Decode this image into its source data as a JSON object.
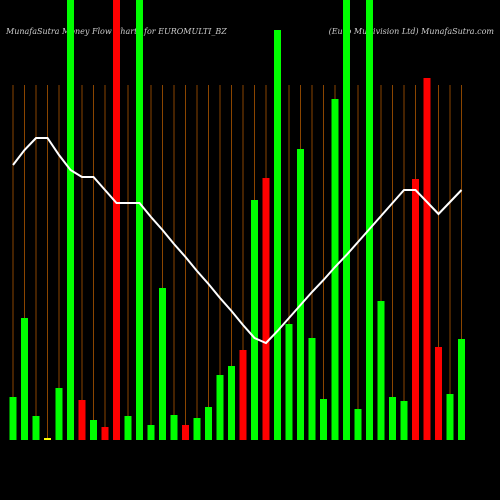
{
  "chart_data": {
    "type": "bar",
    "title": "MunafaSutra Money Flow Charts for EUROMULTI_BZ",
    "subtitle": "(Euro Multivision Ltd) MunafaSutra.com",
    "categories": [
      null,
      null,
      null,
      null,
      null,
      null,
      null,
      null,
      null,
      null,
      null,
      null,
      null,
      null,
      null,
      null,
      null,
      null,
      null,
      null,
      null,
      null,
      null,
      null,
      null,
      null,
      null,
      null,
      null,
      null,
      null,
      null,
      null,
      null,
      null,
      null,
      null,
      null,
      null,
      null
    ],
    "ylim": [
      0,
      440
    ],
    "bar_colors": [
      "#00ff00",
      "#00ff00",
      "#00ff00",
      "#ffff00",
      "#00ff00",
      "#00ff00",
      "#ff0000",
      "#00ff00",
      "#ff0000",
      "#ff0000",
      "#00ff00",
      "#00ff00",
      "#00ff00",
      "#00ff00",
      "#00ff00",
      "#ff0000",
      "#00ff00",
      "#00ff00",
      "#00ff00",
      "#00ff00",
      "#ff0000",
      "#00ff00",
      "#ff0000",
      "#00ff00",
      "#00ff00",
      "#00ff00",
      "#00ff00",
      "#00ff00",
      "#00ff00",
      "#00ff00",
      "#00ff00",
      "#00ff00",
      "#00ff00",
      "#00ff00",
      "#00ff00",
      "#ff0000",
      "#ff0000",
      "#ff0000",
      "#00ff00",
      "#00ff00"
    ],
    "series": [
      {
        "type": "bar",
        "values": [
          43,
          122,
          24,
          2,
          52,
          440,
          40,
          20,
          13,
          440,
          24,
          440,
          15,
          152,
          25,
          15,
          22,
          33,
          65,
          74,
          90,
          240,
          262,
          410,
          116,
          291,
          102,
          41,
          341,
          440,
          31,
          440,
          139,
          43,
          39,
          261,
          362,
          93,
          46,
          101
        ]
      },
      {
        "type": "line",
        "color": "#ffffff",
        "values": [
          275,
          290,
          302,
          302,
          285,
          270,
          263,
          263,
          250,
          237,
          237,
          237,
          223,
          210,
          196,
          183,
          169,
          156,
          142,
          129,
          115,
          102,
          97,
          109,
          122,
          135,
          148,
          160,
          173,
          185,
          198,
          211,
          224,
          237,
          250,
          250,
          238,
          226,
          238,
          250
        ]
      }
    ]
  }
}
